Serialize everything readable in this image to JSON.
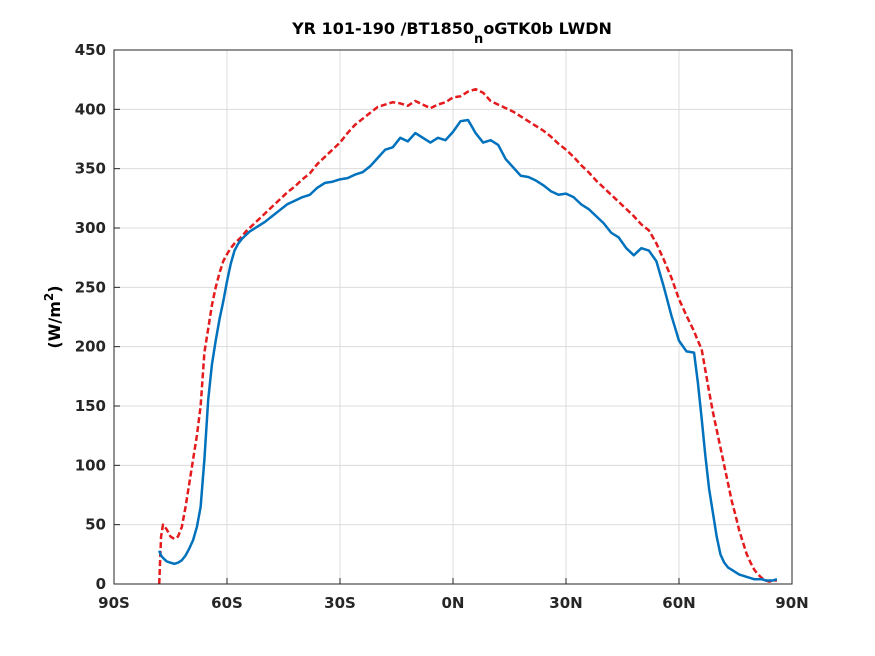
{
  "chart_data": {
    "type": "line",
    "title_main": "YR 101-190 /BT1850",
    "title_sub": "n",
    "title_tail": "oGTK0b LWDN",
    "ylabel_main": "(W/m",
    "ylabel_sup": "2",
    "ylabel_tail": ")",
    "xlim": [
      -90,
      90
    ],
    "ylim": [
      0,
      450
    ],
    "grid": true,
    "x_ticks": [
      {
        "value": -90,
        "label": "90S"
      },
      {
        "value": -60,
        "label": "60S"
      },
      {
        "value": -30,
        "label": "30S"
      },
      {
        "value": 0,
        "label": "0N"
      },
      {
        "value": 30,
        "label": "30N"
      },
      {
        "value": 60,
        "label": "60N"
      },
      {
        "value": 90,
        "label": "90N"
      }
    ],
    "y_ticks": [
      0,
      50,
      100,
      150,
      200,
      250,
      300,
      350,
      400,
      450
    ],
    "series": [
      {
        "color": "#e41a1c",
        "style": "dashed",
        "x": [
          -78,
          -77.5,
          -77,
          -76,
          -75,
          -74,
          -73,
          -72,
          -71,
          -70,
          -69,
          -68,
          -67,
          -66,
          -65,
          -64,
          -63,
          -62,
          -61,
          -60,
          -59,
          -58,
          -57,
          -56,
          -55,
          -54,
          -53,
          -52,
          -50,
          -48,
          -46,
          -44,
          -42,
          -40,
          -38,
          -36,
          -34,
          -32,
          -30,
          -28,
          -26,
          -24,
          -22,
          -20,
          -18,
          -16,
          -14,
          -12,
          -10,
          -8,
          -6,
          -4,
          -2,
          0,
          2,
          4,
          6,
          8,
          10,
          12,
          14,
          16,
          18,
          20,
          22,
          24,
          26,
          28,
          30,
          32,
          34,
          36,
          38,
          40,
          42,
          44,
          46,
          48,
          50,
          52,
          54,
          56,
          58,
          60,
          62,
          64,
          65,
          66,
          67,
          68,
          69,
          70,
          71,
          72,
          73,
          74,
          75,
          76,
          77,
          78,
          79,
          80,
          81,
          82,
          83,
          84,
          85,
          86
        ],
        "values": [
          0,
          40,
          50,
          46,
          40,
          38,
          40,
          48,
          65,
          85,
          105,
          125,
          150,
          195,
          215,
          235,
          250,
          262,
          272,
          278,
          283,
          287,
          290,
          293,
          297,
          300,
          303,
          306,
          312,
          318,
          324,
          330,
          335,
          341,
          346,
          354,
          360,
          366,
          372,
          380,
          387,
          392,
          397,
          402,
          404,
          406,
          405,
          403,
          407,
          404,
          401,
          404,
          406,
          410,
          411,
          415,
          417,
          414,
          407,
          404,
          401,
          398,
          394,
          390,
          386,
          382,
          377,
          371,
          366,
          360,
          353,
          347,
          340,
          334,
          328,
          322,
          316,
          310,
          303,
          298,
          287,
          273,
          258,
          240,
          226,
          213,
          205,
          198,
          180,
          162,
          145,
          130,
          115,
          100,
          85,
          70,
          58,
          45,
          35,
          25,
          18,
          12,
          8,
          5,
          3,
          2,
          3,
          3
        ]
      },
      {
        "color": "#0072bd",
        "style": "solid",
        "x": [
          -78,
          -77.5,
          -77,
          -76,
          -75,
          -74,
          -73,
          -72,
          -71,
          -70,
          -69,
          -68,
          -67,
          -66,
          -65,
          -64,
          -63,
          -62,
          -61,
          -60,
          -59,
          -58,
          -57,
          -56,
          -55,
          -54,
          -53,
          -52,
          -50,
          -48,
          -46,
          -44,
          -42,
          -40,
          -38,
          -36,
          -34,
          -32,
          -30,
          -28,
          -26,
          -24,
          -22,
          -20,
          -18,
          -16,
          -14,
          -12,
          -10,
          -8,
          -6,
          -4,
          -2,
          0,
          2,
          4,
          6,
          8,
          10,
          12,
          14,
          16,
          18,
          20,
          22,
          24,
          26,
          28,
          30,
          32,
          34,
          36,
          38,
          40,
          42,
          44,
          46,
          48,
          50,
          52,
          54,
          56,
          58,
          60,
          62,
          64,
          65,
          66,
          67,
          68,
          69,
          70,
          71,
          72,
          73,
          74,
          75,
          76,
          77,
          78,
          79,
          80,
          81,
          82,
          83,
          84,
          85,
          86
        ],
        "values": [
          28,
          24,
          22,
          19,
          18,
          17,
          18,
          20,
          24,
          30,
          37,
          48,
          65,
          105,
          155,
          185,
          205,
          223,
          238,
          255,
          270,
          281,
          287,
          291,
          294,
          297,
          299,
          301,
          305,
          310,
          315,
          320,
          323,
          326,
          328,
          334,
          338,
          339,
          341,
          342,
          345,
          347,
          352,
          359,
          366,
          368,
          376,
          373,
          380,
          376,
          372,
          376,
          374,
          381,
          390,
          391,
          380,
          372,
          374,
          370,
          358,
          351,
          344,
          343,
          340,
          336,
          331,
          328,
          329,
          326,
          320,
          316,
          310,
          304,
          296,
          292,
          283,
          277,
          283,
          281,
          272,
          250,
          226,
          205,
          196,
          195,
          170,
          140,
          108,
          80,
          60,
          40,
          25,
          18,
          14,
          12,
          10,
          8,
          7,
          6,
          5,
          4,
          4,
          4,
          3,
          3,
          3,
          4
        ]
      }
    ]
  }
}
